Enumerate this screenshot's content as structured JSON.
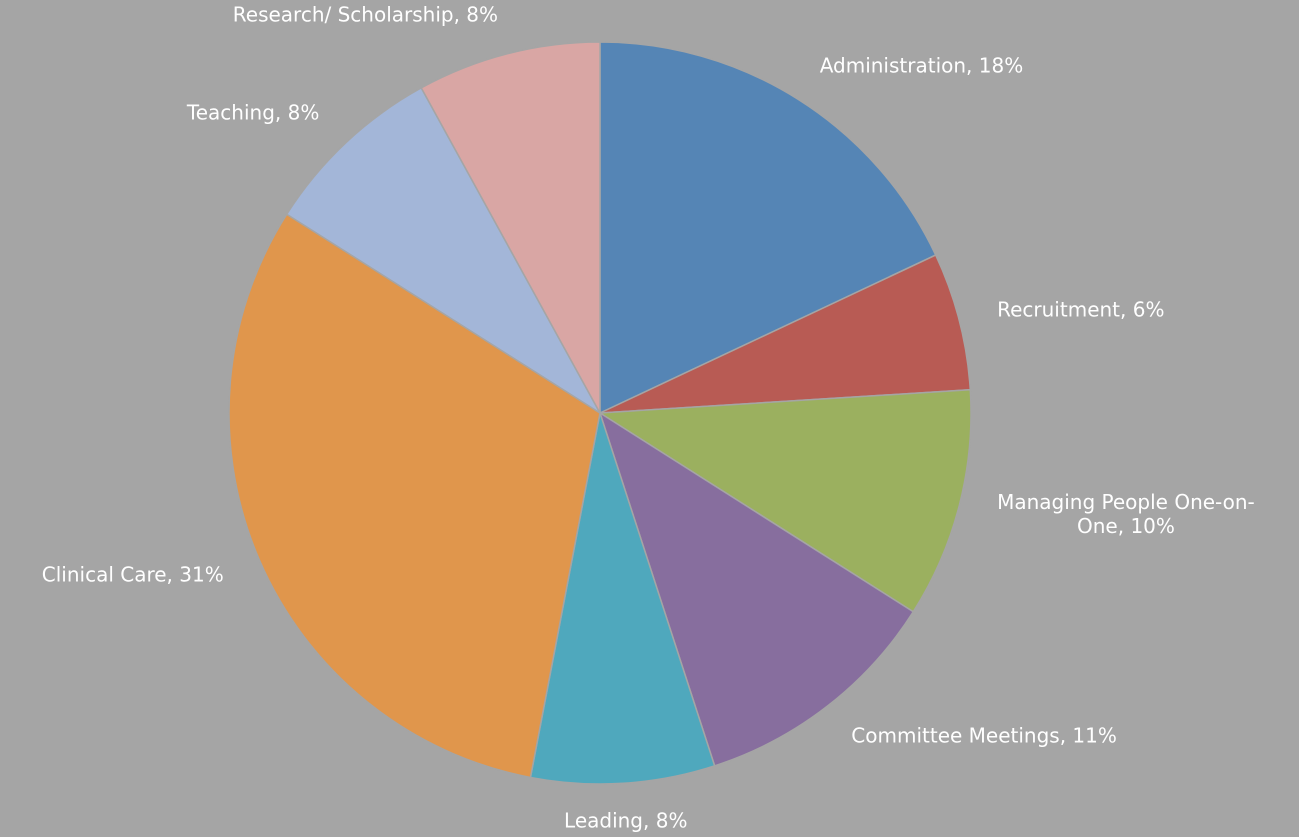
{
  "chart_data": {
    "type": "pie",
    "labels": [
      "Administration, 18%",
      "Recruitment, 6%",
      "Managing People One-on-One, 10%",
      "Committee Meetings, 11%",
      "Leading, 8%",
      "Clinical Care, 31%",
      "Teaching, 8%",
      "Research/ Scholarship, 8%"
    ],
    "values": [
      18,
      6,
      10,
      11,
      8,
      31,
      8,
      8
    ],
    "colors": [
      "#5585b5",
      "#b85b54",
      "#9bb05f",
      "#876e9e",
      "#4fa8bd",
      "#e0964c",
      "#a3b6d8",
      "#d9a6a4"
    ],
    "background": "#a5a5a5"
  }
}
